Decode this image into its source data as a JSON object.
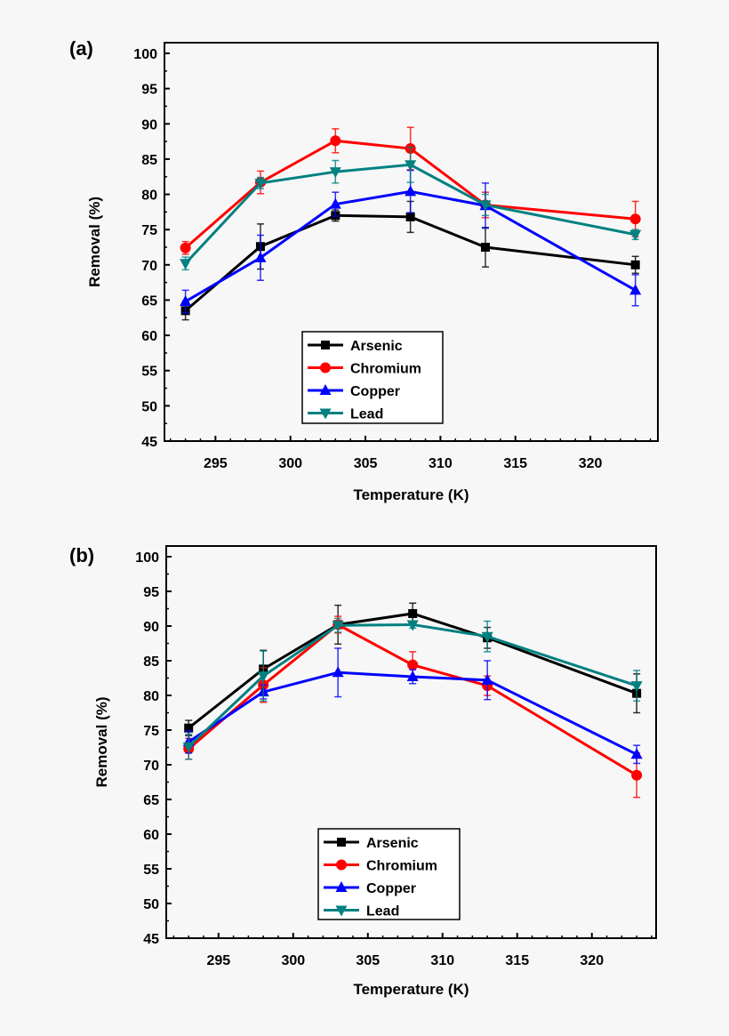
{
  "chart_data": [
    {
      "type": "line",
      "panel_label": "(a)",
      "xlabel": "Temperature (K)",
      "ylabel": "Removal (%)",
      "xlim": [
        291.6,
        324.5
      ],
      "ylim": [
        45,
        100
      ],
      "xticks": [
        295,
        300,
        305,
        310,
        315,
        320
      ],
      "yticks": [
        45,
        50,
        55,
        60,
        65,
        70,
        75,
        80,
        85,
        90,
        95,
        100
      ],
      "grid": false,
      "legend_placement": "lower-center",
      "x": [
        293,
        298,
        303,
        308,
        313,
        323
      ],
      "series": [
        {
          "name": "Arsenic",
          "color": "#000000",
          "marker": "square",
          "values": [
            63.5,
            72.6,
            77.0,
            76.8,
            72.5,
            70.0
          ],
          "errors": [
            1.3,
            3.2,
            0.8,
            2.2,
            2.8,
            1.2
          ]
        },
        {
          "name": "Chromium",
          "color": "#ff0000",
          "marker": "circle",
          "values": [
            72.4,
            81.7,
            87.6,
            86.5,
            78.5,
            76.5
          ],
          "errors": [
            0.9,
            1.6,
            1.7,
            3.0,
            1.8,
            2.5
          ]
        },
        {
          "name": "Copper",
          "color": "#0000ff",
          "marker": "triangle-up",
          "values": [
            64.8,
            71.0,
            78.6,
            80.4,
            78.4,
            66.4
          ],
          "errors": [
            1.6,
            3.2,
            1.7,
            3.0,
            3.2,
            2.2
          ]
        },
        {
          "name": "Lead",
          "color": "#008080",
          "marker": "triangle-down",
          "values": [
            70.2,
            81.6,
            83.2,
            84.2,
            78.5,
            74.3
          ],
          "errors": [
            0.9,
            0.8,
            1.6,
            2.5,
            1.5,
            0.7
          ]
        }
      ]
    },
    {
      "type": "line",
      "panel_label": "(b)",
      "xlabel": "Temperature (K)",
      "ylabel": "Removal (%)",
      "xlim": [
        291.5,
        324.3
      ],
      "ylim": [
        45,
        100
      ],
      "xticks": [
        295,
        300,
        305,
        310,
        315,
        320
      ],
      "yticks": [
        45,
        50,
        55,
        60,
        65,
        70,
        75,
        80,
        85,
        90,
        95,
        100
      ],
      "grid": false,
      "legend_placement": "lower-center",
      "x": [
        293,
        298,
        303,
        308,
        313,
        323
      ],
      "series": [
        {
          "name": "Arsenic",
          "color": "#000000",
          "marker": "square",
          "values": [
            75.3,
            83.8,
            90.2,
            91.8,
            88.3,
            80.3
          ],
          "errors": [
            1.1,
            2.7,
            2.8,
            1.5,
            1.5,
            2.8
          ]
        },
        {
          "name": "Chromium",
          "color": "#ff0000",
          "marker": "circle",
          "values": [
            72.3,
            81.5,
            90.2,
            84.4,
            81.4,
            68.5
          ],
          "errors": [
            1.5,
            2.5,
            1.2,
            1.9,
            1.4,
            3.2
          ]
        },
        {
          "name": "Copper",
          "color": "#0000ff",
          "marker": "triangle-up",
          "values": [
            73.3,
            80.5,
            83.3,
            82.7,
            82.2,
            71.5
          ],
          "errors": [
            1.6,
            1.0,
            3.5,
            1.0,
            2.8,
            1.3
          ]
        },
        {
          "name": "Lead",
          "color": "#008080",
          "marker": "triangle-down",
          "values": [
            72.6,
            82.8,
            90.1,
            90.2,
            88.5,
            81.4
          ],
          "errors": [
            1.8,
            3.6,
            1.0,
            0.5,
            2.2,
            2.2
          ]
        }
      ]
    }
  ]
}
